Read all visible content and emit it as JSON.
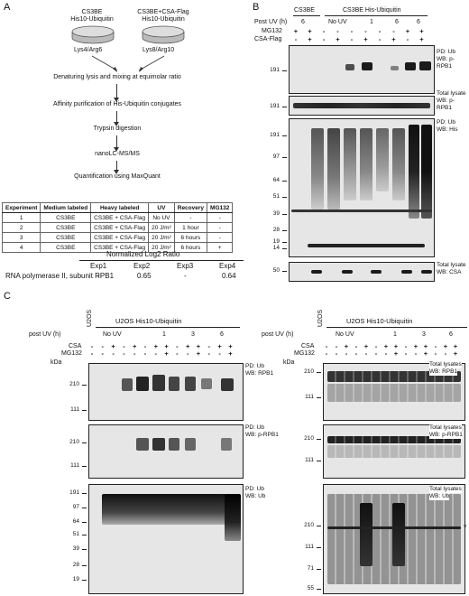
{
  "panels": {
    "a": "A",
    "b": "B",
    "c": "C"
  },
  "panel_a": {
    "dish_left": [
      "CS3BE",
      "His10-Ubiquitin"
    ],
    "dish_right": [
      "CS3BE+CSA-Flag",
      "His10-Ubiquitin"
    ],
    "label_left": "Lys4/Arg6",
    "label_right": "Lys8/Arg10",
    "steps": [
      "Denaturing lysis and mixing at equimolar ratio",
      "Affinity purification of His-Ubiquitin conjugates",
      "Trypsin digestion",
      "nanoLC-MS/MS",
      "Quantification using MaxQuant"
    ],
    "table": {
      "headers": [
        "Experiment",
        "Medium labeled",
        "Heavy labeled",
        "UV",
        "Recovery",
        "MG132"
      ],
      "rows": [
        [
          "1",
          "CS3BE",
          "CS3BE + CSA-Flag",
          "No UV",
          "-",
          "-"
        ],
        [
          "2",
          "CS3BE",
          "CS3BE + CSA-Flag",
          "20 J/m²",
          "1 hour",
          "-"
        ],
        [
          "3",
          "CS3BE",
          "CS3BE + CSA-Flag",
          "20 J/m²",
          "6 hours",
          "-"
        ],
        [
          "4",
          "CS3BE",
          "CS3BE + CSA-Flag",
          "20 J/m²",
          "6 hours",
          "+"
        ]
      ]
    },
    "ratio_title": "Normalized Log2 Ratio",
    "ratio_cols": [
      "Exp1",
      "Exp2",
      "Exp3",
      "Exp4"
    ],
    "ratio_row_label": "RNA polymerase II, subunit RPB1",
    "ratio_values": [
      "-",
      "0.65",
      "-",
      "0.64"
    ]
  },
  "panel_b": {
    "cell_left": "CS3BE",
    "cell_right": "CS3BE His-Ubiquitin",
    "row_post_uv": "Post UV (h)",
    "row_mg132": "MG132",
    "row_csa": "CSA-Flag",
    "uv_values": [
      "6",
      "No UV",
      "1",
      "6",
      "6"
    ],
    "mg132_signs": [
      "+",
      "+",
      "-",
      "-",
      "-",
      "-",
      "-",
      "-",
      "+",
      "+"
    ],
    "csa_signs": [
      "-",
      "+",
      "-",
      "+",
      "-",
      "+",
      "-",
      "+",
      "-",
      "+"
    ],
    "blots": [
      {
        "title": [
          "PD: Ub",
          "WB: p-RPB1"
        ],
        "markers": [
          "191"
        ]
      },
      {
        "title": [
          "Total lysate",
          "WB: p-RPB1"
        ],
        "markers": [
          "191"
        ]
      },
      {
        "title": [
          "PD: Ub",
          "WB: His"
        ],
        "markers": [
          "191",
          "97",
          "64",
          "51",
          "39",
          "28",
          "19",
          "14"
        ]
      },
      {
        "title": [
          "Total lysate",
          "WB: CSA"
        ],
        "markers": [
          "50"
        ]
      }
    ]
  },
  "panel_c": {
    "u2os_label": "U2OS",
    "his_label": "U2OS His10-Ubiquitin",
    "post_uv": "post UV (h)",
    "uv_groups": [
      "No UV",
      "1",
      "3",
      "6"
    ],
    "csa": "CSA",
    "mg132": "MG132",
    "kda": "kDa",
    "csa_signs": [
      "-",
      "-",
      "+",
      "-",
      "+",
      "-",
      "+",
      "+",
      "-",
      "+",
      "+",
      "-",
      "+",
      "+"
    ],
    "mg_signs": [
      "-",
      "-",
      "-",
      "-",
      "-",
      "-",
      "-",
      "+",
      "-",
      "-",
      "+",
      "-",
      "-",
      "+"
    ],
    "left_blots": [
      {
        "title": [
          "PD: Ub",
          "WB: RPB1"
        ],
        "markers": [
          "210",
          "111"
        ]
      },
      {
        "title": [
          "PD: Ub",
          "WB: p-RPB1"
        ],
        "markers": [
          "210",
          "111"
        ]
      },
      {
        "title": [
          "PD: Ub",
          "WB: Ub"
        ],
        "markers": [
          "191",
          "97",
          "64",
          "51",
          "39",
          "28",
          "19"
        ]
      }
    ],
    "right_blots": [
      {
        "title": [
          "Total lysates",
          "WB: RPB1"
        ],
        "markers": [
          "210",
          "111"
        ]
      },
      {
        "title": [
          "Total lysates",
          "WB: p-RPB1"
        ],
        "markers": [
          "210",
          "111"
        ]
      },
      {
        "title": [
          "Total lysates",
          "WB: Ub"
        ],
        "markers": [
          "210",
          "111",
          "71",
          "55"
        ]
      }
    ],
    "asterisk": "*"
  }
}
